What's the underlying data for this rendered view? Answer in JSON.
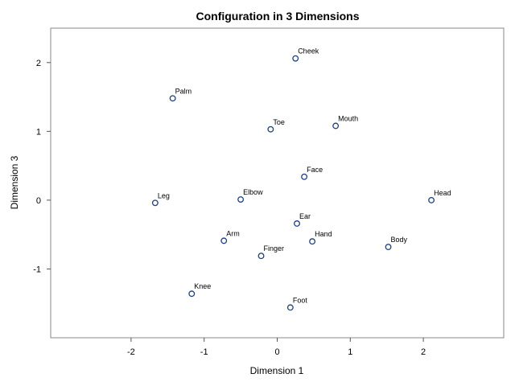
{
  "chart_data": {
    "type": "scatter",
    "title": "Configuration in 3 Dimensions",
    "xlabel": "Dimension 1",
    "ylabel": "Dimension 3",
    "xlim": [
      -3.1,
      3.1
    ],
    "ylim": [
      -2.0,
      2.5
    ],
    "xticks": [
      -2,
      -1,
      0,
      1,
      2
    ],
    "yticks": [
      -1,
      0,
      1,
      2
    ],
    "grid": false,
    "legend": "none",
    "marker_color": "#1f3f7f",
    "points": [
      {
        "label": "Cheek",
        "x": 0.25,
        "y": 2.06
      },
      {
        "label": "Palm",
        "x": -1.43,
        "y": 1.48
      },
      {
        "label": "Mouth",
        "x": 0.8,
        "y": 1.08
      },
      {
        "label": "Toe",
        "x": -0.09,
        "y": 1.03
      },
      {
        "label": "Face",
        "x": 0.37,
        "y": 0.34
      },
      {
        "label": "Head",
        "x": 2.11,
        "y": 0.0
      },
      {
        "label": "Elbow",
        "x": -0.5,
        "y": 0.01
      },
      {
        "label": "Leg",
        "x": -1.67,
        "y": -0.04
      },
      {
        "label": "Ear",
        "x": 0.27,
        "y": -0.34
      },
      {
        "label": "Arm",
        "x": -0.73,
        "y": -0.59
      },
      {
        "label": "Hand",
        "x": 0.48,
        "y": -0.6
      },
      {
        "label": "Body",
        "x": 1.52,
        "y": -0.68
      },
      {
        "label": "Finger",
        "x": -0.22,
        "y": -0.81
      },
      {
        "label": "Knee",
        "x": -1.17,
        "y": -1.36
      },
      {
        "label": "Foot",
        "x": 0.18,
        "y": -1.56
      }
    ]
  }
}
